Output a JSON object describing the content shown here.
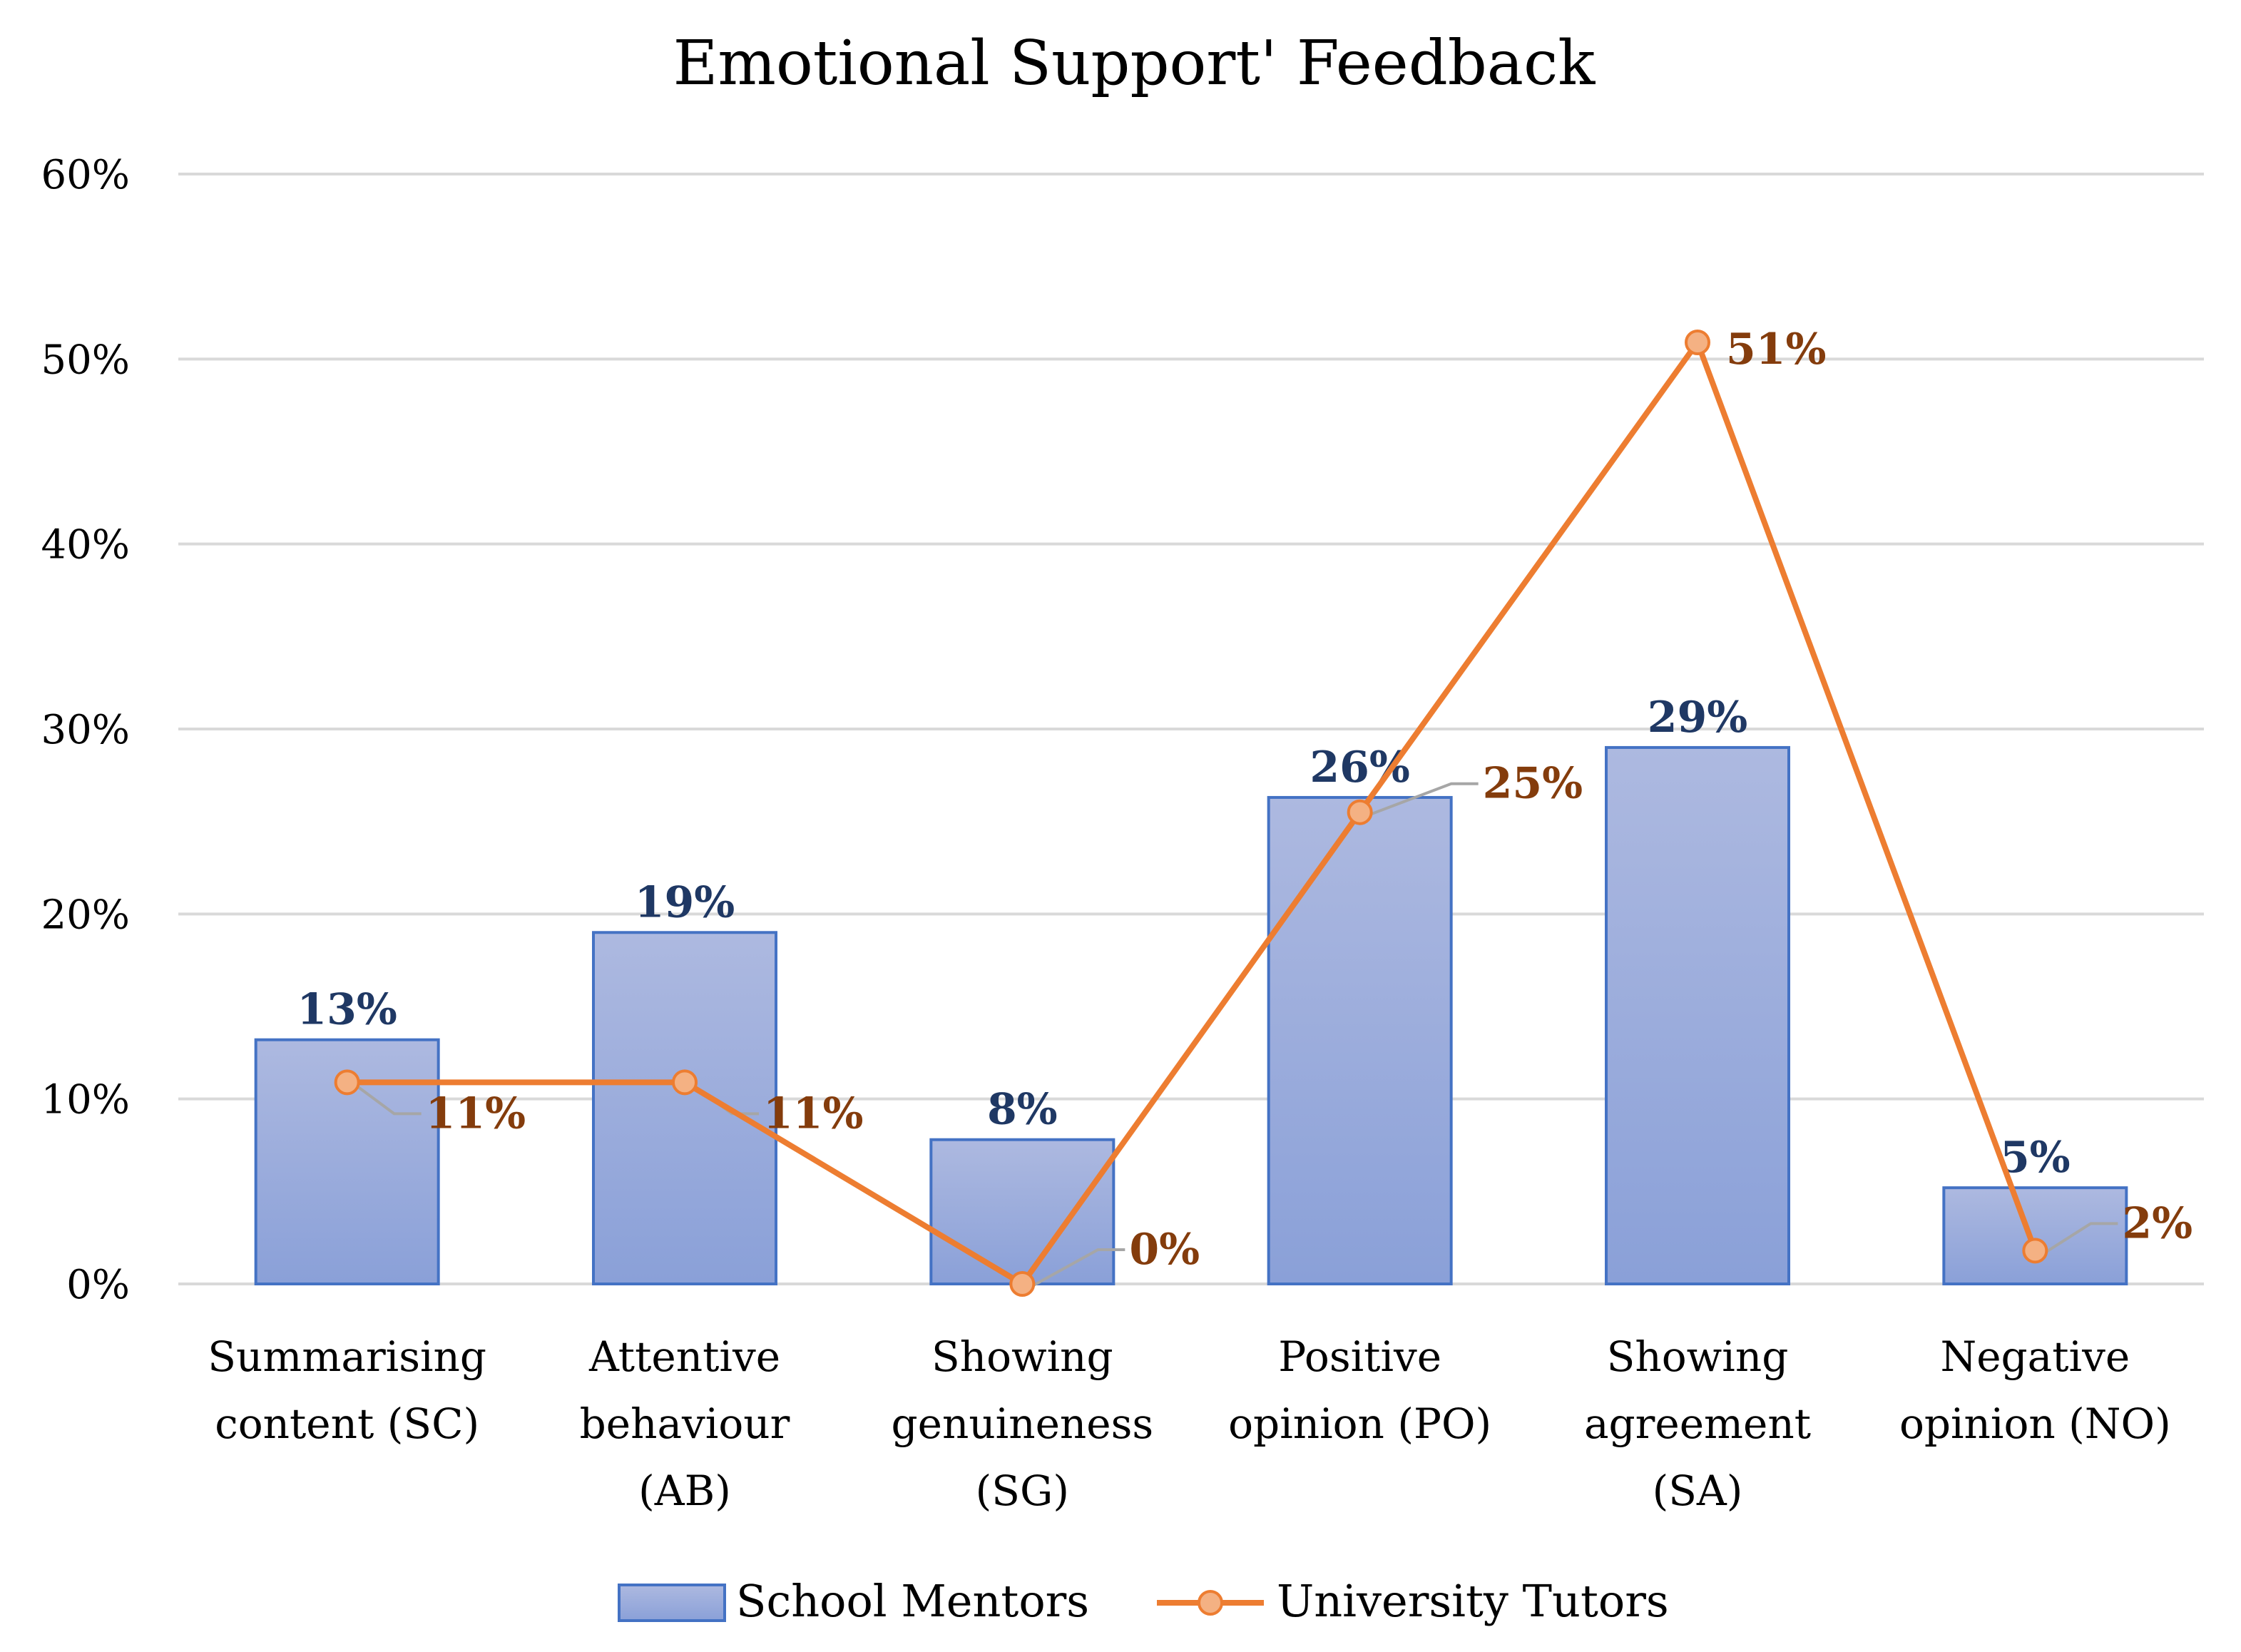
{
  "chart_data": {
    "type": "bar",
    "title": "Emotional Support'  Feedback",
    "categories": [
      [
        "Summarising",
        "content (SC)"
      ],
      [
        "Attentive",
        "behaviour",
        "(AB)"
      ],
      [
        "Showing",
        "genuineness",
        "(SG)"
      ],
      [
        "Positive",
        "opinion (PO)"
      ],
      [
        "Showing",
        "agreement",
        "(SA)"
      ],
      [
        "Negative",
        "opinion (NO)"
      ]
    ],
    "y_ticks": [
      "0%",
      "10%",
      "20%",
      "30%",
      "40%",
      "50%",
      "60%"
    ],
    "ylim": [
      0,
      60
    ],
    "grid": true,
    "legend_position": "bottom",
    "series": [
      {
        "name": "School Mentors",
        "kind": "bar",
        "values": [
          13.2,
          19.0,
          7.8,
          26.3,
          29.0,
          5.2
        ],
        "labels": [
          "13%",
          "19%",
          "8%",
          "26%",
          "29%",
          "5%"
        ],
        "label_color": "#1f3864",
        "fill_top": "#adb9e0",
        "fill_bottom": "#8aa0d8",
        "stroke": "#4472c4"
      },
      {
        "name": "University Tutors",
        "kind": "line",
        "values": [
          10.9,
          10.9,
          0,
          25.5,
          50.9,
          1.8
        ],
        "labels": [
          "11%",
          "11%",
          "0%",
          "25%",
          "51%",
          "2%"
        ],
        "label_color": "#843c0c",
        "line_color": "#ed7d31",
        "marker_fill": "#f4b183"
      }
    ]
  }
}
